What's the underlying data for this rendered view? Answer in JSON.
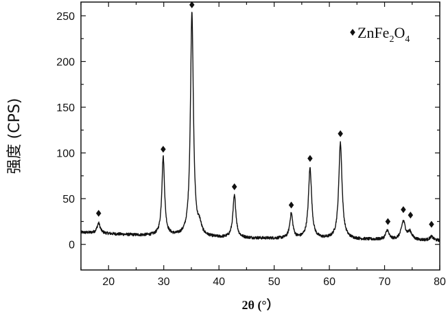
{
  "chart_data": {
    "type": "line",
    "xlabel": "2θ (°）",
    "ylabel": "强度 (CPS)",
    "xlim": [
      15,
      80
    ],
    "ylim": [
      -28,
      265
    ],
    "x_ticks": [
      20,
      30,
      40,
      50,
      60,
      70,
      80
    ],
    "y_ticks": [
      0,
      50,
      100,
      150,
      200,
      250
    ],
    "grid": false,
    "legend": {
      "position": "top-right",
      "marker": "diamond",
      "label_parts": [
        "ZnFe",
        "2",
        "O",
        "4"
      ]
    },
    "series": [
      {
        "name": "ZnFe2O4",
        "color": "#111111",
        "baseline": [
          [
            15,
            13
          ],
          [
            25,
            10
          ],
          [
            40,
            7
          ],
          [
            55,
            6
          ],
          [
            70,
            5
          ],
          [
            80,
            4
          ]
        ],
        "peaks": [
          {
            "x": 18.2,
            "height": 11,
            "width": 0.35
          },
          {
            "x": 29.9,
            "height": 86,
            "width": 0.3
          },
          {
            "x": 35.1,
            "height": 246,
            "width": 0.32
          },
          {
            "x": 36.5,
            "height": 10,
            "width": 0.4
          },
          {
            "x": 42.8,
            "height": 46,
            "width": 0.33
          },
          {
            "x": 53.1,
            "height": 27,
            "width": 0.33
          },
          {
            "x": 56.5,
            "height": 77,
            "width": 0.35
          },
          {
            "x": 62.0,
            "height": 105,
            "width": 0.36
          },
          {
            "x": 70.5,
            "height": 10,
            "width": 0.35
          },
          {
            "x": 73.4,
            "height": 20,
            "width": 0.45
          },
          {
            "x": 74.6,
            "height": 8,
            "width": 0.45
          },
          {
            "x": 78.5,
            "height": 4,
            "width": 0.4
          }
        ],
        "noise_amplitude": 1.6
      }
    ],
    "markers": [
      {
        "x": 18.2,
        "y": 34
      },
      {
        "x": 29.9,
        "y": 104
      },
      {
        "x": 35.1,
        "y": 262
      },
      {
        "x": 42.8,
        "y": 63
      },
      {
        "x": 53.1,
        "y": 43
      },
      {
        "x": 56.5,
        "y": 94
      },
      {
        "x": 62.0,
        "y": 121
      },
      {
        "x": 70.6,
        "y": 25
      },
      {
        "x": 73.4,
        "y": 38
      },
      {
        "x": 74.7,
        "y": 32
      },
      {
        "x": 78.5,
        "y": 22
      }
    ]
  }
}
